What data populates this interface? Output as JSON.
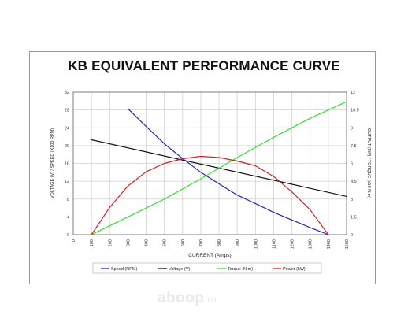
{
  "chart_data": {
    "type": "line",
    "title": "KB EQUIVALENT PERFORMANCE CURVE",
    "xlabel": "CURRENT (Amps)",
    "ylabel_left": "VOLTAGE (V) / SPEED (X100 RPM)",
    "ylabel_right": "OUTPUT (kW) / TORQUE (x10 N.m)",
    "xlim": [
      0,
      1500
    ],
    "ylim_left": [
      0,
      32
    ],
    "ylim_right": [
      0,
      12
    ],
    "x_ticks": [
      "0",
      "100",
      "200",
      "300",
      "400",
      "500",
      "600",
      "700",
      "800",
      "900",
      "1000",
      "1100",
      "1200",
      "1300",
      "1400",
      "1500"
    ],
    "y_ticks_left": [
      "0",
      "4",
      "8",
      "12",
      "16",
      "20",
      "24",
      "28",
      "32"
    ],
    "y_ticks_right": [
      "0",
      "1.5",
      "3",
      "4.5",
      "6",
      "7.5",
      "9",
      "10.5",
      "12"
    ],
    "grid": true,
    "legend_position": "bottom",
    "series": [
      {
        "name": "Speed (RPM)",
        "axis": "left",
        "color": "#2323b8",
        "x": [
          300,
          400,
          500,
          600,
          700,
          800,
          900,
          1000,
          1100,
          1200,
          1300,
          1400
        ],
        "y": [
          28.3,
          24.3,
          20.4,
          17.1,
          14.0,
          11.4,
          8.9,
          7.0,
          5.0,
          3.3,
          1.6,
          0
        ]
      },
      {
        "name": "Voltage (V)",
        "axis": "left",
        "color": "#111111",
        "x": [
          100,
          1500
        ],
        "y": [
          21.3,
          8.6
        ]
      },
      {
        "name": "Torque (N.m)",
        "axis": "right",
        "color": "#33e033",
        "x": [
          100,
          300,
          500,
          700,
          900,
          1100,
          1300,
          1500
        ],
        "y": [
          0,
          1.5,
          3.0,
          4.7,
          6.5,
          8.2,
          9.8,
          11.2
        ]
      },
      {
        "name": "Power (kW)",
        "axis": "right",
        "color": "#d62020",
        "x": [
          100,
          200,
          300,
          400,
          500,
          600,
          700,
          800,
          900,
          1000,
          1100,
          1200,
          1300,
          1400
        ],
        "y": [
          0,
          2.3,
          4.1,
          5.3,
          6.0,
          6.4,
          6.6,
          6.5,
          6.2,
          5.8,
          4.9,
          3.6,
          2.1,
          0
        ]
      }
    ]
  },
  "watermark": {
    "text": "aboop",
    "suffix": ".ru"
  }
}
